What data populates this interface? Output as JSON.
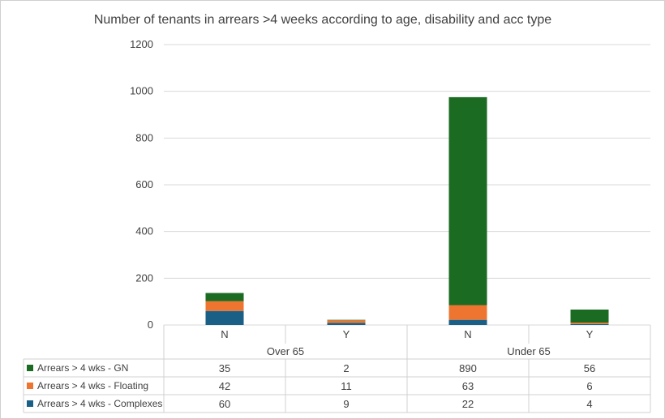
{
  "chart_data": {
    "type": "bar",
    "stacked": true,
    "title": "Number of tenants in arrears >4 weeks according to age, disability and acc type",
    "groups": [
      "Over 65",
      "Under 65"
    ],
    "categories": [
      "N",
      "Y",
      "N",
      "Y"
    ],
    "category_groups": [
      "Over 65",
      "Over 65",
      "Under 65",
      "Under 65"
    ],
    "yticks": [
      "0",
      "200",
      "400",
      "600",
      "800",
      "1000",
      "1200"
    ],
    "ylim": [
      0,
      1200
    ],
    "grid": true,
    "legend": "data-table",
    "series": [
      {
        "name": "Arrears > 4 wks - Complexes",
        "color": "#1a5f86",
        "values": [
          60,
          9,
          22,
          4
        ]
      },
      {
        "name": "Arrears > 4 wks - Floating",
        "color": "#ed7530",
        "values": [
          42,
          11,
          63,
          6
        ]
      },
      {
        "name": "Arrears > 4 wks - GN",
        "color": "#1c6b22",
        "values": [
          35,
          2,
          890,
          56
        ]
      }
    ],
    "table_rows": [
      {
        "name": "Arrears > 4 wks - GN",
        "color": "#1c6b22",
        "cells": [
          "35",
          "2",
          "890",
          "56"
        ]
      },
      {
        "name": "Arrears > 4 wks - Floating",
        "color": "#ed7530",
        "cells": [
          "42",
          "11",
          "63",
          "6"
        ]
      },
      {
        "name": "Arrears > 4 wks - Complexes",
        "color": "#1a5f86",
        "cells": [
          "60",
          "9",
          "22",
          "4"
        ]
      }
    ]
  }
}
